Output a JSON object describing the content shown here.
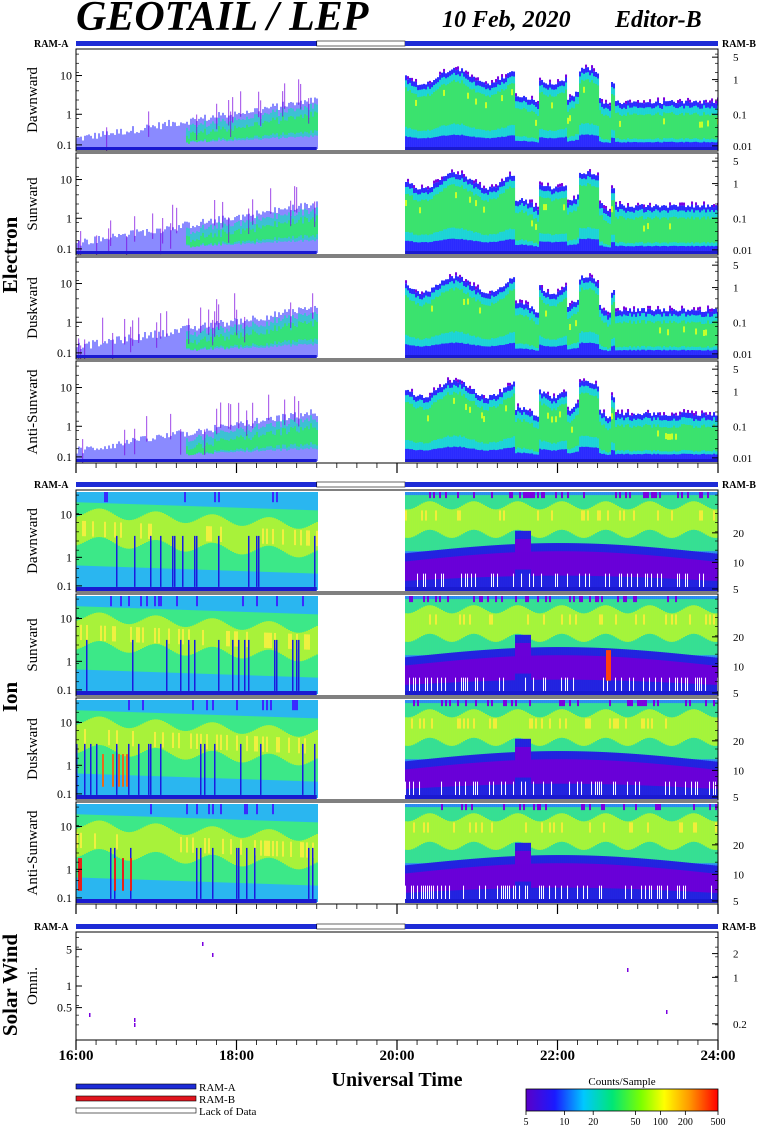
{
  "header": {
    "title": "GEOTAIL / LEP",
    "date": "10 Feb, 2020",
    "editor": "Editor-B"
  },
  "ram_labels": {
    "left": "RAM-A",
    "right": "RAM-B"
  },
  "legend": {
    "ram_a": "RAM-A",
    "ram_b": "RAM-B",
    "lack": "Lack of Data",
    "colorbar_title": "Counts/Sample",
    "colorbar_ticks": [
      "5",
      "10",
      "20",
      "50",
      "100",
      "200",
      "500"
    ]
  },
  "colors": {
    "ram_a": "#1d2bd6",
    "ram_b": "#e0141e"
  },
  "chart_data": {
    "type": "heatmap",
    "xlabel": "Universal Time",
    "xticks": [
      "16:00",
      "18:00",
      "20:00",
      "22:00",
      "24:00"
    ],
    "x_range_hours": [
      16,
      24
    ],
    "data_gap_hours": [
      19.0,
      20.1
    ],
    "groups": [
      {
        "name": "Electron",
        "panels": [
          {
            "label": "Dawnward",
            "yticks_left": [
              "0.1",
              "1",
              "10"
            ],
            "yticks_right": [
              "0.01",
              "0.1",
              "1",
              "5"
            ]
          },
          {
            "label": "Sunward",
            "yticks_left": [
              "0.1",
              "1",
              "10"
            ],
            "yticks_right": [
              "0.01",
              "0.1",
              "1",
              "5"
            ]
          },
          {
            "label": "Duskward",
            "yticks_left": [
              "0.1",
              "1",
              "10"
            ],
            "yticks_right": [
              "0.01",
              "0.1",
              "1",
              "5"
            ]
          },
          {
            "label": "Anti-Sunward",
            "yticks_left": [
              "0.1",
              "1",
              "10"
            ],
            "yticks_right": [
              "0.01",
              "0.1",
              "1",
              "5"
            ]
          }
        ]
      },
      {
        "name": "Ion",
        "panels": [
          {
            "label": "Dawnward",
            "yticks_left": [
              "0.1",
              "1",
              "10"
            ],
            "yticks_right": [
              "5",
              "10",
              "20"
            ]
          },
          {
            "label": "Sunward",
            "yticks_left": [
              "0.1",
              "1",
              "10"
            ],
            "yticks_right": [
              "5",
              "10",
              "20"
            ]
          },
          {
            "label": "Duskward",
            "yticks_left": [
              "0.1",
              "1",
              "10"
            ],
            "yticks_right": [
              "5",
              "10",
              "20"
            ]
          },
          {
            "label": "Anti-Sunward",
            "yticks_left": [
              "0.1",
              "1",
              "10"
            ],
            "yticks_right": [
              "5",
              "10",
              "20"
            ]
          }
        ]
      },
      {
        "name": "Solar Wind",
        "panels": [
          {
            "label": "Omni.",
            "yticks_left": [
              "0.5",
              "1",
              "5"
            ],
            "yticks_right": [
              "0.2",
              "1",
              "2"
            ]
          }
        ]
      }
    ]
  }
}
